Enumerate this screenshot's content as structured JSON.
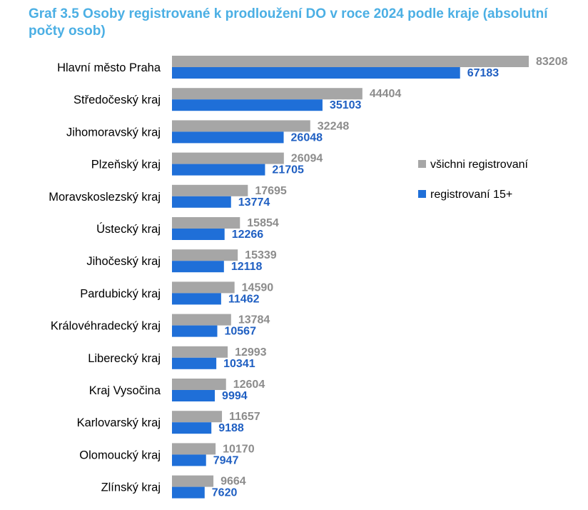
{
  "chart_data": {
    "type": "bar",
    "orientation": "horizontal",
    "title": "Graf 3.5 Osoby registrované k prodloužení DO v roce 2024 podle kraje (absolutní počty osob)",
    "categories": [
      "Hlavní město Praha",
      "Středočeský kraj",
      "Jihomoravský kraj",
      "Plzeňský kraj",
      "Moravskoslezský kraj",
      "Ústecký kraj",
      "Jihočeský kraj",
      "Pardubický kraj",
      "Královéhradecký kraj",
      "Liberecký kraj",
      "Kraj Vysočina",
      "Karlovarský kraj",
      "Olomoucký kraj",
      "Zlínský kraj"
    ],
    "series": [
      {
        "name": "všichni registrovaní",
        "color": "#a6a6a6",
        "label_color": "#8c8c8c",
        "values": [
          83208,
          44404,
          32248,
          26094,
          17695,
          15854,
          15339,
          14590,
          13784,
          12993,
          12604,
          11657,
          10170,
          9664
        ]
      },
      {
        "name": "registrovaní 15+",
        "color": "#1f6fd8",
        "label_color": "#1f5fc2",
        "values": [
          67183,
          35103,
          26048,
          21705,
          13774,
          12266,
          12118,
          11462,
          10567,
          10341,
          9994,
          9188,
          7947,
          7620
        ]
      }
    ],
    "xlim": [
      0,
      90000
    ],
    "grid": false,
    "legend_position": "right"
  }
}
